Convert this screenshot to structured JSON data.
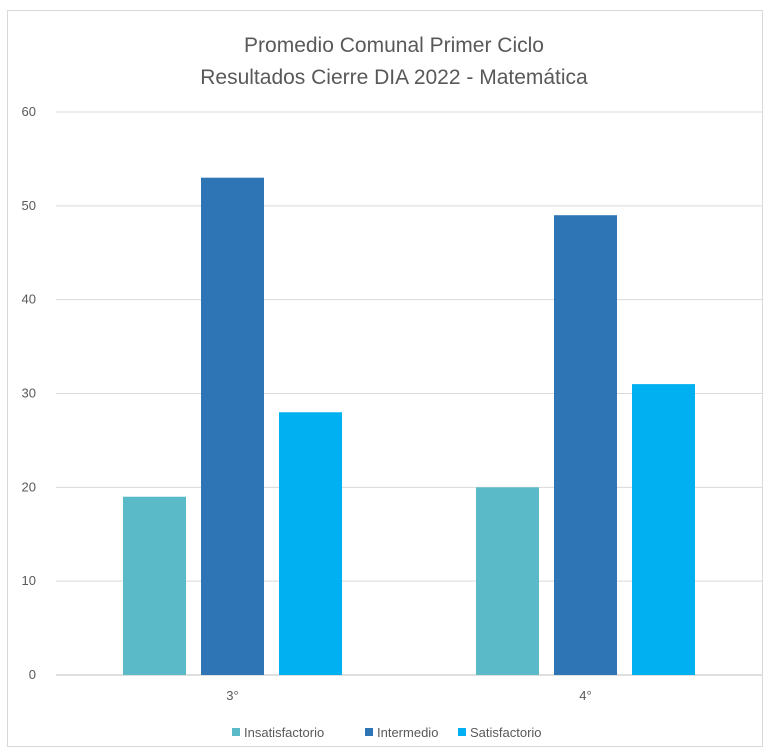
{
  "chart_data": {
    "type": "bar",
    "title": "Promedio Comunal Primer Ciclo",
    "subtitle": "Resultados  Cierre  DIA 2022 - Matemática",
    "categories": [
      "3°",
      "4°"
    ],
    "series": [
      {
        "name": "Insatisfactorio",
        "values": [
          19,
          20
        ],
        "color": "#5bbac8"
      },
      {
        "name": "Intermedio",
        "values": [
          53,
          49
        ],
        "color": "#2e75b6"
      },
      {
        "name": "Satisfactorio",
        "values": [
          28,
          31
        ],
        "color": "#00b0f0"
      }
    ],
    "ylim": [
      0,
      60
    ],
    "yticks": [
      0,
      10,
      20,
      30,
      40,
      50,
      60
    ],
    "grid": true,
    "legend_position": "bottom"
  }
}
